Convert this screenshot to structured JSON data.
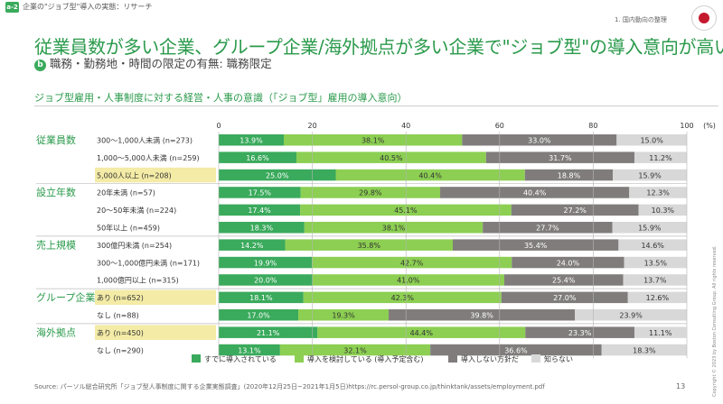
{
  "header": {
    "badge": "a-2",
    "breadcrumb": "企業の\"ジョブ型\"導入の実態：リサーチ",
    "section": "1. 国内動向の整理"
  },
  "title": "従業員数が多い企業、グループ企業/海外拠点が多い企業で\"ジョブ型\"の導入意向が高い",
  "subtitle": {
    "letter": "b",
    "text": "職務・勤務地・時間の限定の有無: 職務限定"
  },
  "chart_title": "ジョブ型雇用・人事制度に対する経営・人事の意識（「ジョブ型」雇用の導入意向）",
  "chart_data": {
    "type": "bar",
    "orientation": "horizontal",
    "stacked": true,
    "xlim": [
      0,
      100
    ],
    "xticks": [
      "0",
      "20",
      "40",
      "60",
      "80",
      "100"
    ],
    "unit_label": "(%)",
    "series": [
      {
        "name": "すでに導入されている",
        "color": "#3aaa5c",
        "text_color": "#ffffff"
      },
      {
        "name": "導入を検討している (導入予定含む)",
        "color": "#8ccf52",
        "text_color": "#333333"
      },
      {
        "name": "導入しない方針だ",
        "color": "#807c7c",
        "text_color": "#ffffff"
      },
      {
        "name": "知らない",
        "color": "#d8d8d8",
        "text_color": "#333333"
      }
    ],
    "groups": [
      {
        "label": "従業員数",
        "rows": [
          {
            "label": "300～1,000人未満 (n=273)",
            "values": [
              13.9,
              38.1,
              33.0,
              15.0
            ],
            "highlight": false
          },
          {
            "label": "1,000～5,000人未満 (n=259)",
            "values": [
              16.6,
              40.5,
              31.7,
              11.2
            ],
            "highlight": false
          },
          {
            "label": "5,000人以上 (n=208)",
            "values": [
              25.0,
              40.4,
              18.8,
              15.9
            ],
            "highlight": true
          }
        ]
      },
      {
        "label": "設立年数",
        "rows": [
          {
            "label": "20年未満 (n=57)",
            "values": [
              17.5,
              29.8,
              40.4,
              12.3
            ],
            "highlight": false
          },
          {
            "label": "20～50年未満 (n=224)",
            "values": [
              17.4,
              45.1,
              27.2,
              10.3
            ],
            "highlight": false
          },
          {
            "label": "50年以上 (n=459)",
            "values": [
              18.3,
              38.1,
              27.7,
              15.9
            ],
            "highlight": false
          }
        ]
      },
      {
        "label": "売上規模",
        "rows": [
          {
            "label": "300億円未満 (n=254)",
            "values": [
              14.2,
              35.8,
              35.4,
              14.6
            ],
            "highlight": false
          },
          {
            "label": "300～1,000億円未満 (n=171)",
            "values": [
              19.9,
              42.7,
              24.0,
              13.5
            ],
            "highlight": false
          },
          {
            "label": "1,000億円以上 (n=315)",
            "values": [
              20.0,
              41.0,
              25.4,
              13.7
            ],
            "highlight": false
          }
        ]
      },
      {
        "label": "グループ企業",
        "rows": [
          {
            "label": "あり (n=652)",
            "values": [
              18.1,
              42.3,
              27.0,
              12.6
            ],
            "highlight": true
          },
          {
            "label": "なし (n=88)",
            "values": [
              17.0,
              19.3,
              39.8,
              23.9
            ],
            "highlight": false
          }
        ]
      },
      {
        "label": "海外拠点",
        "rows": [
          {
            "label": "あり (n=450)",
            "values": [
              21.1,
              44.4,
              23.3,
              11.1
            ],
            "highlight": true
          },
          {
            "label": "なし (n=290)",
            "values": [
              13.1,
              32.1,
              36.6,
              18.3
            ],
            "highlight": false
          }
        ]
      }
    ]
  },
  "footer": {
    "source": "Source: パーソル総合研究所「ジョブ型人事制度に関する企業実態調査」(2020年12月25日~2021年1月5日)https://rc.persol-group.co.jp/thinktank/assets/employment.pdf",
    "page": "13",
    "copyright": "Copyright © 2023 by Boston Consulting Group. All rights reserved."
  },
  "colors": {
    "accent": "#2a9a4b",
    "highlight": "#f3eba6"
  }
}
